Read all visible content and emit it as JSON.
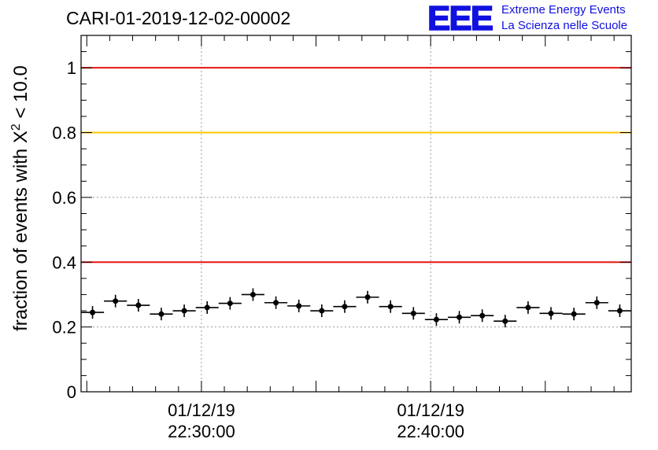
{
  "header": {
    "run_title": "CARI-01-2019-12-02-00002",
    "logo_mark": "EEE",
    "logo_line1": "Extreme Energy Events",
    "logo_line2": "La Scienza nelle Scuole"
  },
  "chart_data": {
    "type": "scatter",
    "title": "CARI-01-2019-12-02-00002",
    "ylabel_prefix": "fraction of events with ",
    "ylabel_chi": "X",
    "ylabel_sup": "2",
    "ylabel_suffix": " < 10.0",
    "xlabel": "",
    "ylim": [
      0,
      1.1
    ],
    "xlim": [
      "01/12/19 22:24:45",
      "01/12/19 22:48:45"
    ],
    "grid": true,
    "y_ticks": [
      0,
      0.2,
      0.4,
      0.6,
      0.8,
      1
    ],
    "y_tick_labels": [
      "0",
      "0.2",
      "0.4",
      "0.6",
      "0.8",
      "1"
    ],
    "x_ticks": [
      {
        "time": "22:30:00",
        "line1": "01/12/19",
        "line2": "22:30:00"
      },
      {
        "time": "22:40:00",
        "line1": "01/12/19",
        "line2": "22:40:00"
      }
    ],
    "reference_lines": [
      {
        "y": 1.0,
        "color": "#e8140f"
      },
      {
        "y": 0.8,
        "color": "#ffc400"
      },
      {
        "y": 0.4,
        "color": "#e8140f"
      }
    ],
    "series": [
      {
        "marker_color": "#000000",
        "points": [
          {
            "x": "22:25:15",
            "y": 0.245
          },
          {
            "x": "22:26:15",
            "y": 0.28
          },
          {
            "x": "22:27:15",
            "y": 0.267
          },
          {
            "x": "22:28:15",
            "y": 0.24
          },
          {
            "x": "22:29:15",
            "y": 0.25
          },
          {
            "x": "22:30:15",
            "y": 0.26
          },
          {
            "x": "22:31:15",
            "y": 0.273
          },
          {
            "x": "22:32:15",
            "y": 0.3
          },
          {
            "x": "22:33:15",
            "y": 0.275
          },
          {
            "x": "22:34:15",
            "y": 0.265
          },
          {
            "x": "22:35:15",
            "y": 0.25
          },
          {
            "x": "22:36:15",
            "y": 0.263
          },
          {
            "x": "22:37:15",
            "y": 0.292
          },
          {
            "x": "22:38:15",
            "y": 0.263
          },
          {
            "x": "22:39:15",
            "y": 0.242
          },
          {
            "x": "22:40:15",
            "y": 0.223
          },
          {
            "x": "22:41:15",
            "y": 0.23
          },
          {
            "x": "22:42:15",
            "y": 0.235
          },
          {
            "x": "22:43:15",
            "y": 0.218
          },
          {
            "x": "22:44:15",
            "y": 0.26
          },
          {
            "x": "22:45:15",
            "y": 0.242
          },
          {
            "x": "22:46:15",
            "y": 0.24
          },
          {
            "x": "22:47:15",
            "y": 0.275
          },
          {
            "x": "22:48:15",
            "y": 0.25
          }
        ]
      }
    ]
  }
}
